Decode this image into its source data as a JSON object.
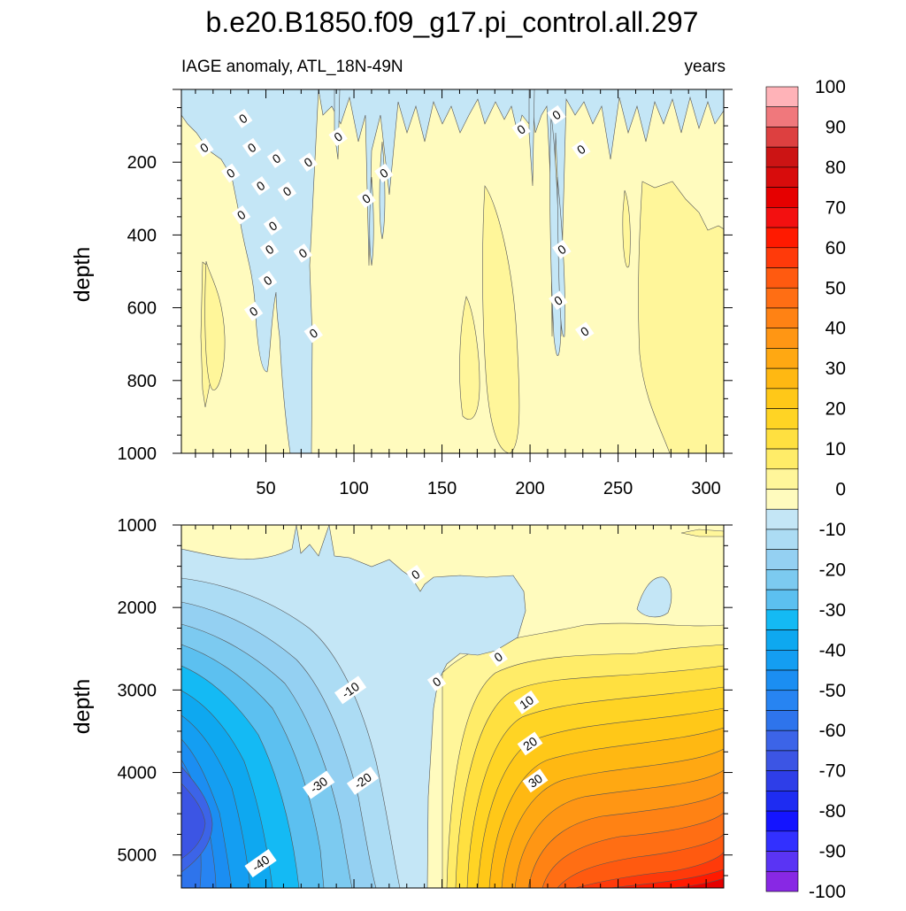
{
  "title": "b.e20.B1850.f09_g17.pi_control.all.297",
  "subtitle_left": "IAGE anomaly, ATL_18N-49N",
  "subtitle_right": "years",
  "chart_data": [
    {
      "type": "heatmap",
      "panel": "upper",
      "ylabel": "depth",
      "xlim": [
        2,
        310
      ],
      "ylim": [
        1000,
        0
      ],
      "x_ticks": [
        50,
        100,
        150,
        200,
        250,
        300
      ],
      "x_tick_labels": [
        "50",
        "100",
        "150",
        "200",
        "250",
        "300"
      ],
      "y_ticks": [
        200,
        400,
        600,
        800,
        1000
      ],
      "y_tick_labels": [
        "200",
        "400",
        "600",
        "800",
        "1000"
      ],
      "contour_labels": [
        {
          "text": "0",
          "x": 37,
          "y": 80
        },
        {
          "text": "0",
          "x": 15,
          "y": 160
        },
        {
          "text": "0",
          "x": 42,
          "y": 160
        },
        {
          "text": "0",
          "x": 91,
          "y": 130
        },
        {
          "text": "0",
          "x": 56,
          "y": 190
        },
        {
          "text": "0",
          "x": 74,
          "y": 200
        },
        {
          "text": "0",
          "x": 30,
          "y": 230
        },
        {
          "text": "0",
          "x": 47,
          "y": 265
        },
        {
          "text": "0",
          "x": 62,
          "y": 280
        },
        {
          "text": "0",
          "x": 117,
          "y": 230
        },
        {
          "text": "0",
          "x": 107,
          "y": 300
        },
        {
          "text": "0",
          "x": 36,
          "y": 345
        },
        {
          "text": "0",
          "x": 54,
          "y": 375
        },
        {
          "text": "0",
          "x": 52,
          "y": 440
        },
        {
          "text": "0",
          "x": 71,
          "y": 450
        },
        {
          "text": "0",
          "x": 51,
          "y": 525
        },
        {
          "text": "0",
          "x": 43,
          "y": 610
        },
        {
          "text": "0",
          "x": 77,
          "y": 670
        },
        {
          "text": "0",
          "x": 195,
          "y": 110
        },
        {
          "text": "0",
          "x": 215,
          "y": 70
        },
        {
          "text": "0",
          "x": 229,
          "y": 165
        },
        {
          "text": "0",
          "x": 218,
          "y": 440
        },
        {
          "text": "0",
          "x": 216,
          "y": 580
        },
        {
          "text": "0",
          "x": 231,
          "y": 665
        }
      ]
    },
    {
      "type": "heatmap",
      "panel": "lower",
      "ylabel": "depth",
      "xlim": [
        2,
        310
      ],
      "ylim": [
        5400,
        1000
      ],
      "y_ticks": [
        1000,
        2000,
        3000,
        4000,
        5000
      ],
      "y_tick_labels": [
        "1000",
        "2000",
        "3000",
        "4000",
        "5000"
      ],
      "contour_labels": [
        {
          "text": "0",
          "x": 135,
          "y": 1600
        },
        {
          "text": "0",
          "x": 182,
          "y": 2600
        },
        {
          "text": "0",
          "x": 147,
          "y": 2900
        },
        {
          "text": "-10",
          "x": 98,
          "y": 3000
        },
        {
          "text": "10",
          "x": 198,
          "y": 3150
        },
        {
          "text": "20",
          "x": 200,
          "y": 3650
        },
        {
          "text": "-20",
          "x": 105,
          "y": 4100
        },
        {
          "text": "-30",
          "x": 80,
          "y": 4150
        },
        {
          "text": "30",
          "x": 203,
          "y": 4100
        },
        {
          "text": "-40",
          "x": 47,
          "y": 5100
        }
      ]
    }
  ],
  "colorbar": {
    "labels": [
      "100",
      "90",
      "80",
      "70",
      "60",
      "50",
      "40",
      "30",
      "20",
      "10",
      "0",
      "-10",
      "-20",
      "-30",
      "-40",
      "-50",
      "-60",
      "-70",
      "-80",
      "-90",
      "-100"
    ],
    "colors": [
      "#ffb3b8",
      "#f0787c",
      "#dd4040",
      "#cc1414",
      "#d80c0c",
      "#e60000",
      "#f31010",
      "#ff1a00",
      "#ff3a0a",
      "#ff5a10",
      "#ff6e14",
      "#ff8214",
      "#ff9614",
      "#ffa812",
      "#ffb812",
      "#ffc818",
      "#ffd424",
      "#ffe040",
      "#ffec68",
      "#fff69a",
      "#fffbbe",
      "#c4e6f6",
      "#acdcf4",
      "#94d0f2",
      "#7ccaf0",
      "#5cc0f0",
      "#14baf4",
      "#0ea8f0",
      "#149ef2",
      "#1b8ef2",
      "#2784f2",
      "#2e74ec",
      "#3c64e8",
      "#3c55e4",
      "#2e3ee8",
      "#1e2cf2",
      "#1414ff",
      "#3230ff",
      "#5a34f4",
      "#8828e4"
    ]
  }
}
